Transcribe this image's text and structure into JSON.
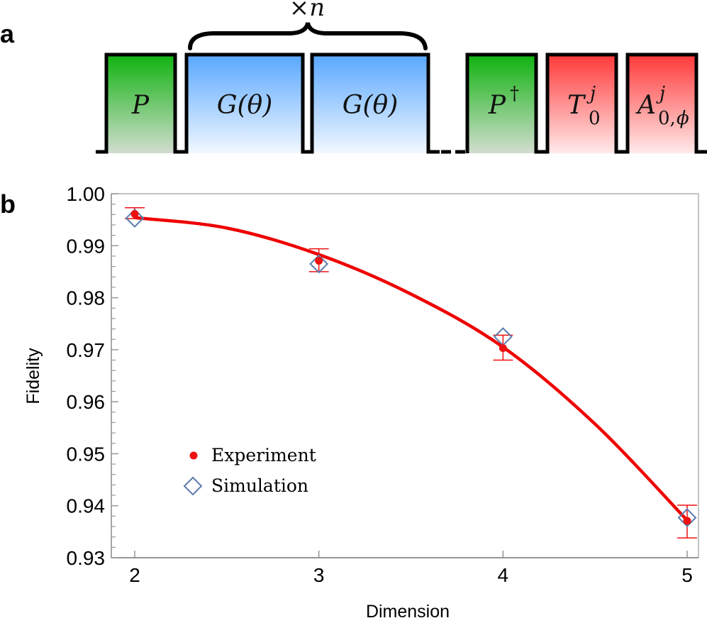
{
  "panel_a": {
    "label": "a",
    "repeat_label": "×n",
    "gates": [
      {
        "id": "P",
        "text": "P",
        "sup": "",
        "sub": "",
        "color": "green"
      },
      {
        "id": "G1",
        "text": "G(θ)",
        "sup": "",
        "sub": "",
        "color": "blue"
      },
      {
        "id": "G2",
        "text": "G(θ)",
        "sup": "",
        "sub": "",
        "color": "blue"
      },
      {
        "id": "Pdag",
        "text": "P",
        "sup": "†",
        "sub": "",
        "color": "green"
      },
      {
        "id": "T",
        "text": "T",
        "sup": "j",
        "sub": "0",
        "color": "red"
      },
      {
        "id": "A",
        "text": "A",
        "sup": "j",
        "sub": "0,",
        "sub2": "ϕ",
        "color": "red"
      }
    ],
    "colors": {
      "green_top": "#12b312",
      "green_bottom": "#d2ddd0",
      "blue_top": "#5aa8ff",
      "blue_bottom": "#f2f8ff",
      "red_top": "#ff3b3b",
      "red_bottom": "#ffeaea"
    }
  },
  "panel_b": {
    "label": "b"
  },
  "chart_data": {
    "type": "scatter",
    "title": "",
    "xlabel": "Dimension",
    "ylabel": "Fidelity",
    "xlim": [
      1.87,
      5.06
    ],
    "ylim": [
      0.93,
      1.0
    ],
    "xticks": [
      2,
      3,
      4,
      5
    ],
    "xtick_labels": [
      "2",
      "3",
      "4",
      "5"
    ],
    "yticks": [
      0.93,
      0.94,
      0.95,
      0.96,
      0.97,
      0.98,
      0.99,
      1.0
    ],
    "ytick_labels": [
      "0.93",
      "0.94",
      "0.95",
      "0.96",
      "0.97",
      "0.98",
      "0.99",
      "1.00"
    ],
    "grid": false,
    "legend_position": "lower-left",
    "series": [
      {
        "name": "Experiment",
        "marker": "filled-circle",
        "color": "#ee1111",
        "x": [
          2,
          3,
          4,
          5
        ],
        "y": [
          0.9961,
          0.9871,
          0.9703,
          0.9371
        ],
        "err_low": [
          0.9952,
          0.985,
          0.968,
          0.9338
        ],
        "err_high": [
          0.9973,
          0.9894,
          0.9728,
          0.9401
        ]
      },
      {
        "name": "Simulation",
        "marker": "open-diamond",
        "color": "#5b7bad",
        "x": [
          2,
          3,
          4,
          5
        ],
        "y": [
          0.9953,
          0.9865,
          0.9725,
          0.9377
        ]
      },
      {
        "name": "Fit",
        "type": "line",
        "color": "#ee0000",
        "x": [
          2,
          2.5,
          3,
          3.5,
          4,
          4.5,
          5
        ],
        "y": [
          0.9954,
          0.9934,
          0.9883,
          0.9807,
          0.9705,
          0.9557,
          0.9372
        ]
      }
    ]
  }
}
